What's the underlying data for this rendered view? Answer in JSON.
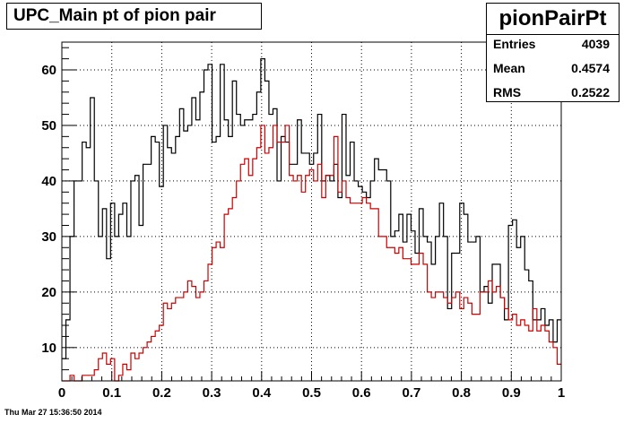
{
  "title": "UPC_Main pt of pion pair",
  "stats": {
    "name": "pionPairPt",
    "rows": [
      {
        "label": "Entries",
        "value": "4039"
      },
      {
        "label": "Mean",
        "value": "0.4574"
      },
      {
        "label": "RMS",
        "value": "0.2522"
      }
    ]
  },
  "footer": "Thu Mar 27 15:36:50 2014",
  "chart_data": {
    "type": "line",
    "title": "UPC_Main pt of pion pair",
    "xlim": [
      0,
      1
    ],
    "ylim": [
      4,
      65
    ],
    "x_ticks": [
      "0",
      "0.1",
      "0.2",
      "0.3",
      "0.4",
      "0.5",
      "0.6",
      "0.7",
      "0.8",
      "0.9",
      "1"
    ],
    "y_ticks": [
      10,
      20,
      30,
      40,
      50,
      60
    ],
    "grid": true,
    "bins": 100,
    "series": [
      {
        "color": "#000000",
        "values": [
          8,
          15,
          30,
          40,
          40,
          47,
          46,
          55,
          40,
          30,
          35,
          26,
          36,
          30,
          34,
          36,
          30,
          40,
          41,
          32,
          43,
          43,
          48,
          47,
          39,
          50,
          46,
          45,
          48,
          53,
          49,
          50,
          55,
          51,
          56,
          60,
          61,
          47,
          48,
          61,
          51,
          48,
          58,
          52,
          50,
          51,
          51,
          52,
          56,
          62,
          58,
          52,
          53,
          40,
          48,
          47,
          43,
          43,
          51,
          45,
          45,
          43,
          45,
          52,
          40,
          41,
          40,
          43,
          37,
          52,
          41,
          47,
          40,
          39,
          38,
          37,
          40,
          44,
          42,
          42,
          40,
          30,
          31,
          34,
          29,
          34,
          31,
          27,
          35,
          30,
          29,
          25,
          30,
          36,
          30,
          17,
          27,
          27,
          36,
          34,
          29,
          29,
          30,
          20,
          21,
          18,
          25,
          25,
          19,
          15,
          32,
          33,
          28,
          30,
          24,
          22,
          15,
          15,
          17,
          14,
          15,
          11,
          15
        ]
      },
      {
        "color": "#cc0000",
        "values": [
          3,
          3,
          5,
          3,
          3,
          5,
          5,
          5,
          6,
          8,
          9,
          7,
          8,
          4,
          5,
          7,
          6,
          9,
          8,
          9,
          10,
          11,
          12,
          13,
          14,
          18,
          17,
          18,
          19,
          19,
          20,
          22,
          21,
          19,
          20,
          22,
          25,
          28,
          29,
          28,
          34,
          35,
          37,
          40,
          43,
          44,
          41,
          44,
          46,
          50,
          45,
          46,
          50,
          47,
          47,
          50,
          41,
          40,
          41,
          38,
          41,
          42,
          40,
          43,
          37,
          41,
          41,
          48,
          38,
          40,
          37,
          36,
          36,
          36,
          37,
          36,
          35,
          35,
          30,
          30,
          28,
          28,
          27,
          28,
          26,
          26,
          25,
          25,
          27,
          25,
          20,
          19,
          20,
          20,
          19,
          18,
          19,
          20,
          17,
          19,
          18,
          16,
          16,
          20,
          20,
          22,
          20,
          21,
          19,
          17,
          15,
          16,
          14,
          15,
          14,
          13,
          17,
          13,
          14,
          13,
          11,
          10,
          7
        ]
      }
    ]
  }
}
